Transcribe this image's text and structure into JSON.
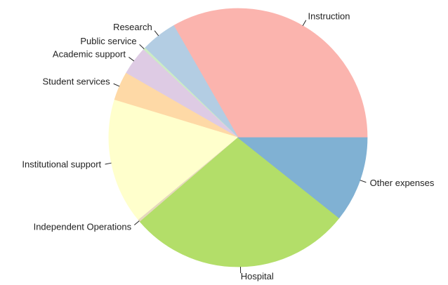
{
  "chart_data": {
    "type": "pie",
    "categories": [
      "Instruction",
      "Research",
      "Public service",
      "Academic support",
      "Student services",
      "Institutional support",
      "Independent Operations",
      "Hospital",
      "Other expenses"
    ],
    "values": [
      33.3,
      4.5,
      0.3,
      3.6,
      3.6,
      15.7,
      0.3,
      28.0,
      10.7
    ],
    "colors": [
      "#fbb4ae",
      "#b3cde3",
      "#ccebc5",
      "#decbe4",
      "#fed9a6",
      "#ffffcc",
      "#e5d8bd",
      "#b3de69",
      "#80b1d3"
    ]
  }
}
